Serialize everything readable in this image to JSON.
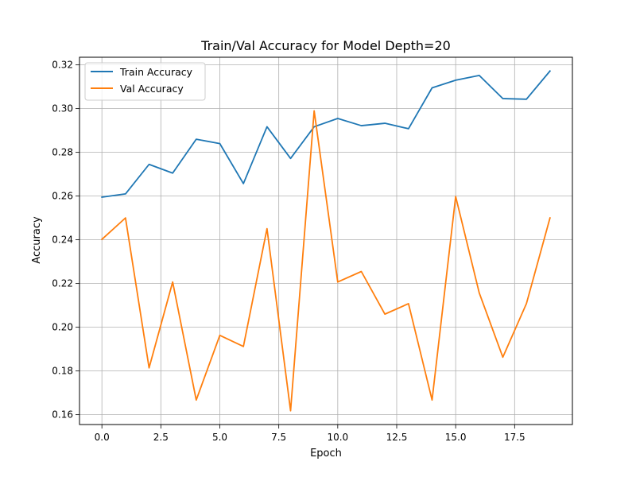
{
  "chart_data": {
    "type": "line",
    "title": "Train/Val Accuracy for Model Depth=20",
    "xlabel": "Epoch",
    "ylabel": "Accuracy",
    "xlim": [
      -0.95,
      19.95
    ],
    "ylim": [
      0.1555,
      0.3235
    ],
    "x_ticks": [
      0,
      2.5,
      5,
      7.5,
      10,
      12.5,
      15,
      17.5
    ],
    "x_tick_labels": [
      "0.0",
      "2.5",
      "5.0",
      "7.5",
      "10.0",
      "12.5",
      "15.0",
      "17.5"
    ],
    "y_ticks": [
      0.16,
      0.18,
      0.2,
      0.22,
      0.24,
      0.26,
      0.28,
      0.3,
      0.32
    ],
    "y_tick_labels": [
      "0.16",
      "0.18",
      "0.20",
      "0.22",
      "0.24",
      "0.26",
      "0.28",
      "0.30",
      "0.32"
    ],
    "grid": true,
    "legend_position": "top-left",
    "x": [
      0,
      1,
      2,
      3,
      4,
      5,
      6,
      7,
      8,
      9,
      10,
      11,
      12,
      13,
      14,
      15,
      16,
      17,
      18,
      19
    ],
    "series": [
      {
        "name": "Train Accuracy",
        "color": "#1f77b4",
        "values": [
          0.2595,
          0.261,
          0.2745,
          0.2705,
          0.286,
          0.284,
          0.2657,
          0.2917,
          0.2772,
          0.2917,
          0.2955,
          0.2922,
          0.2933,
          0.2908,
          0.3095,
          0.313,
          0.3152,
          0.3046,
          0.3043,
          0.3172
        ]
      },
      {
        "name": "Val Accuracy",
        "color": "#ff7f0e",
        "values": [
          0.2402,
          0.25,
          0.1814,
          0.2207,
          0.1667,
          0.1963,
          0.1912,
          0.2451,
          0.1618,
          0.299,
          0.2207,
          0.2255,
          0.206,
          0.2108,
          0.1667,
          0.2598,
          0.2157,
          0.1863,
          0.2108,
          0.25
        ]
      }
    ]
  }
}
